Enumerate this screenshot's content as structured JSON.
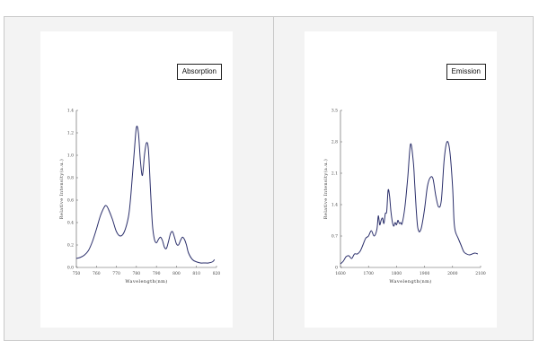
{
  "chart_data": [
    {
      "type": "line",
      "legend": "Absorption",
      "legend_placement": "top-right",
      "xlabel": "Wavelength(nm)",
      "ylabel": "Relative Intensity(a.u.)",
      "xlim": [
        750,
        820
      ],
      "ylim": [
        0,
        1.4
      ],
      "xticks": [
        "750",
        "760",
        "770",
        "780",
        "790",
        "800",
        "810",
        "820"
      ],
      "yticks": [
        "0.0",
        "0.2",
        "0.4",
        "0.6",
        "0.8",
        "1.0",
        "1.2",
        "1.4"
      ],
      "grid": false,
      "color": "#2b2f6b",
      "x": [
        750,
        752,
        754,
        756,
        758,
        760,
        762,
        764,
        765,
        766,
        768,
        770,
        772,
        774,
        776,
        777,
        778,
        779,
        780,
        781,
        782,
        783,
        784,
        785,
        786,
        787,
        788,
        789,
        790,
        791,
        792,
        793,
        794,
        795,
        796,
        797,
        798,
        799,
        800,
        801,
        802,
        803,
        804,
        805,
        806,
        808,
        810,
        812,
        814,
        816,
        818,
        819
      ],
      "y": [
        0.08,
        0.09,
        0.11,
        0.15,
        0.23,
        0.34,
        0.46,
        0.54,
        0.55,
        0.52,
        0.43,
        0.32,
        0.28,
        0.32,
        0.45,
        0.6,
        0.82,
        1.05,
        1.25,
        1.2,
        0.95,
        0.82,
        1.0,
        1.11,
        1.05,
        0.7,
        0.38,
        0.25,
        0.22,
        0.25,
        0.27,
        0.24,
        0.18,
        0.17,
        0.23,
        0.3,
        0.32,
        0.27,
        0.21,
        0.2,
        0.24,
        0.27,
        0.25,
        0.2,
        0.13,
        0.07,
        0.05,
        0.04,
        0.04,
        0.04,
        0.05,
        0.07
      ]
    },
    {
      "type": "line",
      "legend": "Emission",
      "legend_placement": "top-right",
      "xlabel": "Wavelength(nm)",
      "ylabel": "Relative Intensity(a.u.)",
      "xlim": [
        1600,
        2100
      ],
      "ylim": [
        0,
        3.5
      ],
      "xticks": [
        "1600",
        "1700",
        "1800",
        "1900",
        "2000",
        "2100"
      ],
      "yticks": [
        "0",
        "0.7",
        "1.4",
        "2.1",
        "2.8",
        "3.5"
      ],
      "grid": false,
      "color": "#2b2f6b",
      "x": [
        1600,
        1610,
        1620,
        1630,
        1640,
        1650,
        1660,
        1670,
        1680,
        1690,
        1700,
        1710,
        1720,
        1730,
        1735,
        1740,
        1745,
        1750,
        1755,
        1760,
        1765,
        1770,
        1775,
        1780,
        1785,
        1790,
        1795,
        1800,
        1805,
        1810,
        1815,
        1820,
        1830,
        1840,
        1850,
        1860,
        1865,
        1870,
        1875,
        1880,
        1885,
        1890,
        1900,
        1910,
        1920,
        1930,
        1940,
        1950,
        1960,
        1970,
        1980,
        1990,
        2000,
        2005,
        2010,
        2020,
        2030,
        2040,
        2050,
        2060,
        2070,
        2080,
        2090
      ],
      "y": [
        0.08,
        0.14,
        0.24,
        0.26,
        0.2,
        0.3,
        0.3,
        0.36,
        0.5,
        0.65,
        0.7,
        0.82,
        0.7,
        0.85,
        1.15,
        0.95,
        1.05,
        1.1,
        0.98,
        1.2,
        1.25,
        1.72,
        1.6,
        1.25,
        1.02,
        0.92,
        1.0,
        0.95,
        1.05,
        0.98,
        1.0,
        0.98,
        1.35,
        2.0,
        2.75,
        2.35,
        1.85,
        1.32,
        0.92,
        0.8,
        0.82,
        0.92,
        1.3,
        1.8,
        2.0,
        1.98,
        1.6,
        1.35,
        1.5,
        2.4,
        2.8,
        2.6,
        1.8,
        1.05,
        0.8,
        0.65,
        0.5,
        0.35,
        0.3,
        0.28,
        0.3,
        0.32,
        0.3
      ]
    }
  ]
}
